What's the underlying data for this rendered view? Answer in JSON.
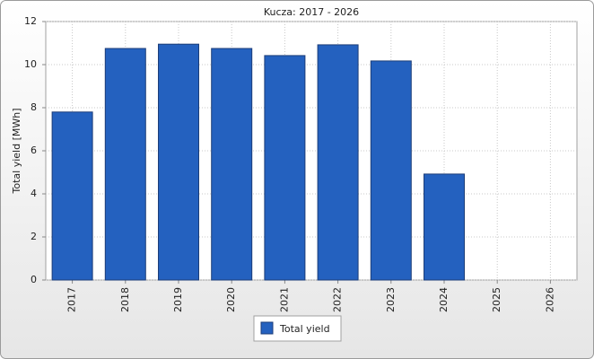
{
  "chart_data": {
    "type": "bar",
    "title": "Kucza: 2017 - 2026",
    "y_label": "Total yield [MWh]",
    "categories": [
      "2017",
      "2018",
      "2019",
      "2020",
      "2021",
      "2022",
      "2023",
      "2024",
      "2025",
      "2026"
    ],
    "series": [
      {
        "name": "Total yield",
        "color": "#2461bf",
        "values": [
          7.8,
          10.75,
          10.95,
          10.75,
          10.42,
          10.92,
          10.17,
          4.92,
          null,
          null
        ]
      }
    ],
    "ylim": [
      0,
      12
    ],
    "yticks": [
      0,
      2,
      4,
      6,
      8,
      10,
      12
    ],
    "grid": true
  }
}
